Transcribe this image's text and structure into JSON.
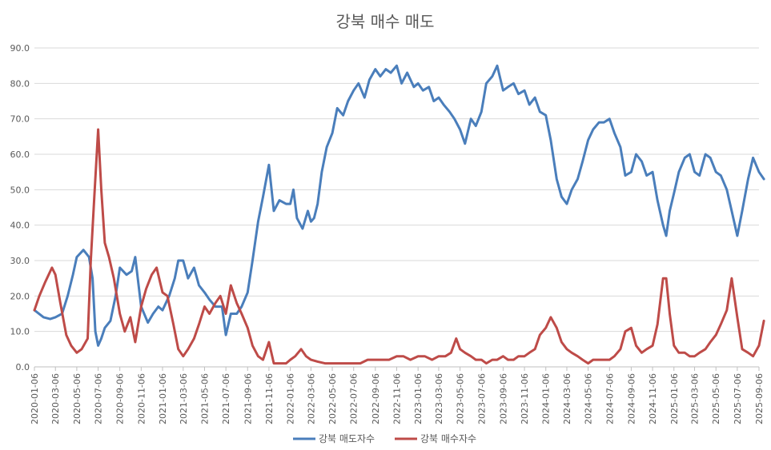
{
  "chart_data": {
    "type": "line",
    "title": "강북 매수 매도",
    "xlabel": "",
    "ylabel": "",
    "ylim": [
      0,
      90
    ],
    "y_ticks": [
      "0.0",
      "10.0",
      "20.0",
      "30.0",
      "40.0",
      "50.0",
      "60.0",
      "70.0",
      "80.0",
      "90.0"
    ],
    "x_tick_labels": [
      "2020-01-06",
      "2020-03-06",
      "2020-05-06",
      "2020-07-06",
      "2020-09-06",
      "2020-11-06",
      "2021-01-06",
      "2021-03-06",
      "2021-05-06",
      "2021-07-06",
      "2021-09-06",
      "2021-11-06",
      "2022-01-06",
      "2022-03-06",
      "2022-05-06",
      "2022-07-06",
      "2022-09-06",
      "2022-11-06",
      "2023-01-06",
      "2023-03-06",
      "2023-05-06",
      "2023-07-06",
      "2023-09-06",
      "2023-11-06",
      "2024-01-06",
      "2024-03-06",
      "2024-05-06",
      "2024-07-06",
      "2024-09-06",
      "2024-11-06",
      "2025-01-06",
      "2025-03-06",
      "2025-05-06",
      "2025-07-06",
      "2025-09-06"
    ],
    "grid": true,
    "legend": "bottom",
    "series": [
      {
        "name": "강북 매도자수",
        "color": "#4a7ebb",
        "points": [
          [
            "2020-01-06",
            16
          ],
          [
            "2020-02-01",
            14
          ],
          [
            "2020-02-20",
            13.5
          ],
          [
            "2020-03-06",
            14
          ],
          [
            "2020-03-25",
            15
          ],
          [
            "2020-04-10",
            20
          ],
          [
            "2020-04-25",
            26
          ],
          [
            "2020-05-06",
            31
          ],
          [
            "2020-05-25",
            33
          ],
          [
            "2020-06-10",
            31
          ],
          [
            "2020-06-20",
            25
          ],
          [
            "2020-06-28",
            10
          ],
          [
            "2020-07-06",
            6
          ],
          [
            "2020-07-15",
            8
          ],
          [
            "2020-07-25",
            11
          ],
          [
            "2020-08-10",
            13
          ],
          [
            "2020-08-25",
            20
          ],
          [
            "2020-09-06",
            28
          ],
          [
            "2020-09-25",
            26
          ],
          [
            "2020-10-10",
            27
          ],
          [
            "2020-10-20",
            31
          ],
          [
            "2020-11-06",
            17
          ],
          [
            "2020-11-25",
            12.5
          ],
          [
            "2020-12-10",
            15
          ],
          [
            "2020-12-25",
            17
          ],
          [
            "2021-01-06",
            16
          ],
          [
            "2021-01-25",
            20
          ],
          [
            "2021-02-10",
            25
          ],
          [
            "2021-02-20",
            30
          ],
          [
            "2021-03-06",
            30
          ],
          [
            "2021-03-20",
            25
          ],
          [
            "2021-04-06",
            28
          ],
          [
            "2021-04-20",
            23
          ],
          [
            "2021-05-06",
            21
          ],
          [
            "2021-05-20",
            19
          ],
          [
            "2021-06-06",
            17
          ],
          [
            "2021-06-25",
            17
          ],
          [
            "2021-07-06",
            9
          ],
          [
            "2021-07-20",
            15
          ],
          [
            "2021-08-06",
            15
          ],
          [
            "2021-08-20",
            17
          ],
          [
            "2021-09-06",
            21
          ],
          [
            "2021-09-20",
            30
          ],
          [
            "2021-10-06",
            41
          ],
          [
            "2021-10-20",
            48
          ],
          [
            "2021-11-06",
            57
          ],
          [
            "2021-11-20",
            44
          ],
          [
            "2021-12-06",
            47
          ],
          [
            "2021-12-25",
            46
          ],
          [
            "2022-01-06",
            46
          ],
          [
            "2022-01-15",
            50
          ],
          [
            "2022-01-25",
            42
          ],
          [
            "2022-02-10",
            39
          ],
          [
            "2022-02-25",
            44
          ],
          [
            "2022-03-06",
            41
          ],
          [
            "2022-03-15",
            42
          ],
          [
            "2022-03-25",
            46
          ],
          [
            "2022-04-06",
            55
          ],
          [
            "2022-04-20",
            62
          ],
          [
            "2022-05-06",
            66
          ],
          [
            "2022-05-20",
            73
          ],
          [
            "2022-06-06",
            71
          ],
          [
            "2022-06-20",
            75
          ],
          [
            "2022-07-06",
            78
          ],
          [
            "2022-07-20",
            80
          ],
          [
            "2022-08-06",
            76
          ],
          [
            "2022-08-20",
            81
          ],
          [
            "2022-09-06",
            84
          ],
          [
            "2022-09-20",
            82
          ],
          [
            "2022-10-06",
            84
          ],
          [
            "2022-10-20",
            83
          ],
          [
            "2022-11-06",
            85
          ],
          [
            "2022-11-20",
            80
          ],
          [
            "2022-12-06",
            83
          ],
          [
            "2022-12-25",
            79
          ],
          [
            "2023-01-06",
            80
          ],
          [
            "2023-01-20",
            78
          ],
          [
            "2023-02-06",
            79
          ],
          [
            "2023-02-20",
            75
          ],
          [
            "2023-03-06",
            76
          ],
          [
            "2023-03-20",
            74
          ],
          [
            "2023-04-06",
            72
          ],
          [
            "2023-04-20",
            70
          ],
          [
            "2023-05-06",
            67
          ],
          [
            "2023-05-20",
            63
          ],
          [
            "2023-06-06",
            70
          ],
          [
            "2023-06-20",
            68
          ],
          [
            "2023-07-06",
            72
          ],
          [
            "2023-07-20",
            80
          ],
          [
            "2023-08-06",
            82
          ],
          [
            "2023-08-20",
            85
          ],
          [
            "2023-09-06",
            78
          ],
          [
            "2023-09-20",
            79
          ],
          [
            "2023-10-06",
            80
          ],
          [
            "2023-10-20",
            77
          ],
          [
            "2023-11-06",
            78
          ],
          [
            "2023-11-20",
            74
          ],
          [
            "2023-12-06",
            76
          ],
          [
            "2023-12-20",
            72
          ],
          [
            "2024-01-06",
            71
          ],
          [
            "2024-01-20",
            64
          ],
          [
            "2024-02-06",
            53
          ],
          [
            "2024-02-20",
            48
          ],
          [
            "2024-03-06",
            46
          ],
          [
            "2024-03-20",
            50
          ],
          [
            "2024-04-06",
            53
          ],
          [
            "2024-04-20",
            58
          ],
          [
            "2024-05-06",
            64
          ],
          [
            "2024-05-20",
            67
          ],
          [
            "2024-06-06",
            69
          ],
          [
            "2024-06-20",
            69
          ],
          [
            "2024-07-06",
            70
          ],
          [
            "2024-07-20",
            66
          ],
          [
            "2024-08-06",
            62
          ],
          [
            "2024-08-20",
            54
          ],
          [
            "2024-09-06",
            55
          ],
          [
            "2024-09-20",
            60
          ],
          [
            "2024-10-06",
            58
          ],
          [
            "2024-10-20",
            54
          ],
          [
            "2024-11-06",
            55
          ],
          [
            "2024-11-20",
            47
          ],
          [
            "2024-12-06",
            40
          ],
          [
            "2024-12-15",
            37
          ],
          [
            "2024-12-25",
            44
          ],
          [
            "2025-01-06",
            49
          ],
          [
            "2025-01-20",
            55
          ],
          [
            "2025-02-06",
            59
          ],
          [
            "2025-02-20",
            60
          ],
          [
            "2025-03-06",
            55
          ],
          [
            "2025-03-20",
            54
          ],
          [
            "2025-04-06",
            60
          ],
          [
            "2025-04-20",
            59
          ],
          [
            "2025-05-06",
            55
          ],
          [
            "2025-05-20",
            54
          ],
          [
            "2025-06-06",
            50
          ],
          [
            "2025-06-20",
            44
          ],
          [
            "2025-07-06",
            37
          ],
          [
            "2025-07-20",
            44
          ],
          [
            "2025-08-06",
            53
          ],
          [
            "2025-08-20",
            59
          ],
          [
            "2025-09-06",
            55
          ],
          [
            "2025-09-20",
            53
          ]
        ]
      },
      {
        "name": "강북 매수자수",
        "color": "#be4b48",
        "points": [
          [
            "2020-01-06",
            16
          ],
          [
            "2020-01-20",
            20
          ],
          [
            "2020-02-06",
            24
          ],
          [
            "2020-02-25",
            28
          ],
          [
            "2020-03-06",
            26
          ],
          [
            "2020-03-20",
            18
          ],
          [
            "2020-04-06",
            9
          ],
          [
            "2020-04-20",
            6
          ],
          [
            "2020-05-06",
            4
          ],
          [
            "2020-05-20",
            5
          ],
          [
            "2020-06-06",
            8
          ],
          [
            "2020-06-15",
            30
          ],
          [
            "2020-06-25",
            48
          ],
          [
            "2020-07-06",
            67
          ],
          [
            "2020-07-15",
            50
          ],
          [
            "2020-07-25",
            35
          ],
          [
            "2020-08-06",
            31
          ],
          [
            "2020-08-20",
            25
          ],
          [
            "2020-09-06",
            15
          ],
          [
            "2020-09-20",
            10
          ],
          [
            "2020-10-06",
            14
          ],
          [
            "2020-10-20",
            7
          ],
          [
            "2020-11-06",
            17
          ],
          [
            "2020-11-20",
            22
          ],
          [
            "2020-12-06",
            26
          ],
          [
            "2020-12-20",
            28
          ],
          [
            "2021-01-06",
            21
          ],
          [
            "2021-01-20",
            20
          ],
          [
            "2021-02-06",
            12
          ],
          [
            "2021-02-20",
            5
          ],
          [
            "2021-03-06",
            3
          ],
          [
            "2021-03-20",
            5
          ],
          [
            "2021-04-06",
            8
          ],
          [
            "2021-04-20",
            12
          ],
          [
            "2021-05-06",
            17
          ],
          [
            "2021-05-20",
            15
          ],
          [
            "2021-06-06",
            18
          ],
          [
            "2021-06-20",
            20
          ],
          [
            "2021-07-06",
            15
          ],
          [
            "2021-07-20",
            23
          ],
          [
            "2021-08-06",
            18
          ],
          [
            "2021-08-20",
            15
          ],
          [
            "2021-09-06",
            11
          ],
          [
            "2021-09-20",
            6
          ],
          [
            "2021-10-06",
            3
          ],
          [
            "2021-10-20",
            2
          ],
          [
            "2021-11-06",
            7
          ],
          [
            "2021-11-20",
            1
          ],
          [
            "2021-12-06",
            1
          ],
          [
            "2021-12-25",
            1
          ],
          [
            "2022-01-06",
            2
          ],
          [
            "2022-01-20",
            3
          ],
          [
            "2022-02-06",
            5
          ],
          [
            "2022-02-20",
            3
          ],
          [
            "2022-03-06",
            2
          ],
          [
            "2022-03-25",
            1.5
          ],
          [
            "2022-04-15",
            1
          ],
          [
            "2022-05-06",
            1
          ],
          [
            "2022-05-25",
            1
          ],
          [
            "2022-06-15",
            1
          ],
          [
            "2022-07-06",
            1
          ],
          [
            "2022-07-25",
            1
          ],
          [
            "2022-08-15",
            2
          ],
          [
            "2022-09-06",
            2
          ],
          [
            "2022-09-25",
            2
          ],
          [
            "2022-10-15",
            2
          ],
          [
            "2022-11-06",
            3
          ],
          [
            "2022-11-25",
            3
          ],
          [
            "2022-12-15",
            2
          ],
          [
            "2023-01-06",
            3
          ],
          [
            "2023-01-25",
            3
          ],
          [
            "2023-02-15",
            2
          ],
          [
            "2023-03-06",
            3
          ],
          [
            "2023-03-25",
            3
          ],
          [
            "2023-04-10",
            4
          ],
          [
            "2023-04-25",
            8
          ],
          [
            "2023-05-06",
            5
          ],
          [
            "2023-05-20",
            4
          ],
          [
            "2023-06-06",
            3
          ],
          [
            "2023-06-20",
            2
          ],
          [
            "2023-07-06",
            2
          ],
          [
            "2023-07-20",
            1
          ],
          [
            "2023-08-06",
            2
          ],
          [
            "2023-08-20",
            2
          ],
          [
            "2023-09-06",
            3
          ],
          [
            "2023-09-20",
            2
          ],
          [
            "2023-10-06",
            2
          ],
          [
            "2023-10-20",
            3
          ],
          [
            "2023-11-06",
            3
          ],
          [
            "2023-11-20",
            4
          ],
          [
            "2023-12-06",
            5
          ],
          [
            "2023-12-20",
            9
          ],
          [
            "2024-01-06",
            11
          ],
          [
            "2024-01-20",
            14
          ],
          [
            "2024-02-06",
            11
          ],
          [
            "2024-02-20",
            7
          ],
          [
            "2024-03-06",
            5
          ],
          [
            "2024-03-20",
            4
          ],
          [
            "2024-04-06",
            3
          ],
          [
            "2024-04-20",
            2
          ],
          [
            "2024-05-06",
            1
          ],
          [
            "2024-05-20",
            2
          ],
          [
            "2024-06-06",
            2
          ],
          [
            "2024-06-20",
            2
          ],
          [
            "2024-07-06",
            2
          ],
          [
            "2024-07-20",
            3
          ],
          [
            "2024-08-06",
            5
          ],
          [
            "2024-08-20",
            10
          ],
          [
            "2024-09-06",
            11
          ],
          [
            "2024-09-20",
            6
          ],
          [
            "2024-10-06",
            4
          ],
          [
            "2024-10-20",
            5
          ],
          [
            "2024-11-06",
            6
          ],
          [
            "2024-11-20",
            12
          ],
          [
            "2024-12-06",
            25
          ],
          [
            "2024-12-15",
            25
          ],
          [
            "2024-12-25",
            15
          ],
          [
            "2025-01-06",
            6
          ],
          [
            "2025-01-20",
            4
          ],
          [
            "2025-02-06",
            4
          ],
          [
            "2025-02-20",
            3
          ],
          [
            "2025-03-06",
            3
          ],
          [
            "2025-03-20",
            4
          ],
          [
            "2025-04-06",
            5
          ],
          [
            "2025-04-20",
            7
          ],
          [
            "2025-05-06",
            9
          ],
          [
            "2025-05-20",
            12
          ],
          [
            "2025-06-06",
            16
          ],
          [
            "2025-06-20",
            25
          ],
          [
            "2025-07-06",
            14
          ],
          [
            "2025-07-20",
            5
          ],
          [
            "2025-08-06",
            4
          ],
          [
            "2025-08-20",
            3
          ],
          [
            "2025-09-06",
            6
          ],
          [
            "2025-09-20",
            13
          ]
        ]
      }
    ]
  }
}
